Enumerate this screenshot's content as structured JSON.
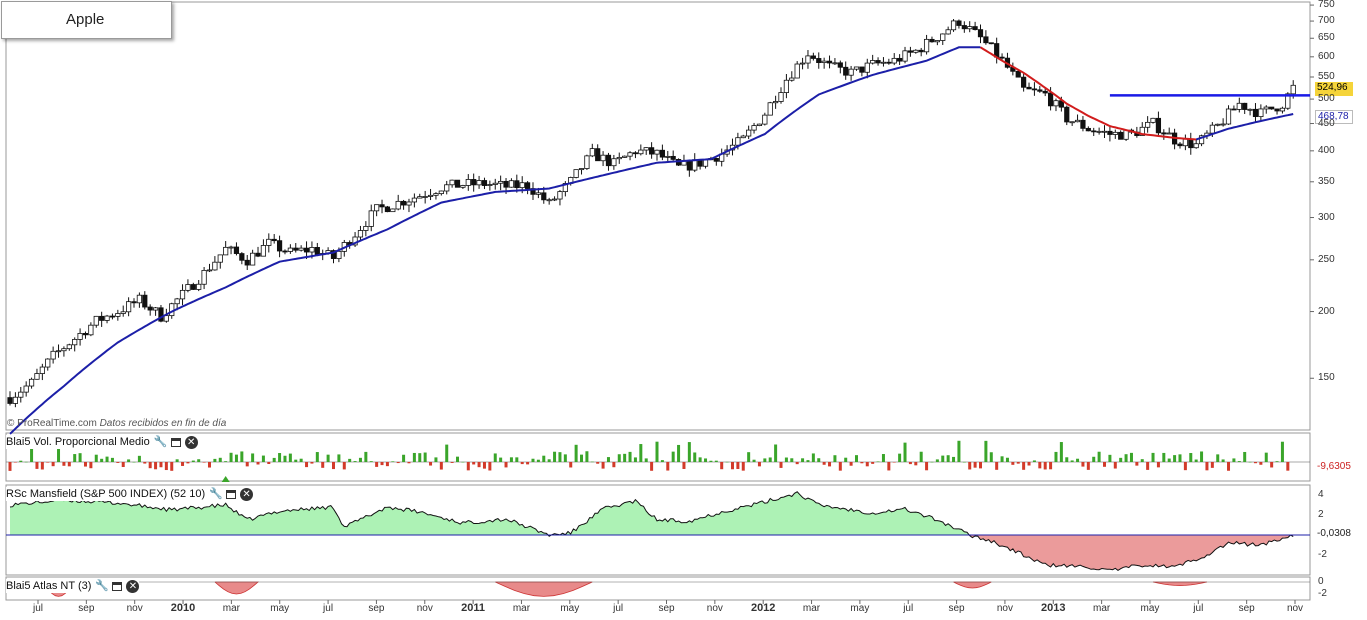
{
  "title": "Apple",
  "credit": {
    "brand": "© ProRealTime.com",
    "note": "Datos recibidos en fin de día"
  },
  "panels": {
    "volume": {
      "title": "Blai5 Vol. Proporcional Medio",
      "value": "-9,6305"
    },
    "rsc": {
      "title": "RSc Mansfield (S&P 500 INDEX) (52 10)",
      "value": "-0,0308",
      "ticks": [
        "4",
        "2",
        "-2"
      ]
    },
    "atlas": {
      "title": "Blai5 Atlas NT (3)",
      "ticks": [
        "0",
        "-2"
      ]
    }
  },
  "price_axis": {
    "ticks": [
      "750",
      "700",
      "650",
      "600",
      "550",
      "500",
      "450",
      "400",
      "350",
      "300",
      "250",
      "200",
      "150"
    ],
    "last_price": "524,96",
    "ma_value": "468,78"
  },
  "colors": {
    "bull_volume": "#3aa52a",
    "bear_volume": "#d23a2a",
    "ma_long": "#1c1fa8",
    "ma_short": "#d11c1c",
    "resistance": "#1a1ae6",
    "rsc_pos": "#9ff0a8",
    "rsc_neg": "#e88a8a",
    "last_price_tag": "#f5d43a"
  },
  "chart_data": {
    "type": "candlestick",
    "scale": "log",
    "ylim": [
      120,
      760
    ],
    "x_ticks": [
      "jul",
      "sep",
      "nov",
      "2010",
      "mar",
      "may",
      "jul",
      "sep",
      "nov",
      "2011",
      "mar",
      "may",
      "jul",
      "sep",
      "nov",
      "2012",
      "mar",
      "may",
      "jul",
      "sep",
      "nov",
      "2013",
      "mar",
      "may",
      "jul",
      "sep",
      "nov"
    ],
    "weekly_close_anchors": [
      [
        0,
        138
      ],
      [
        4,
        147
      ],
      [
        8,
        165
      ],
      [
        12,
        178
      ],
      [
        16,
        192
      ],
      [
        20,
        200
      ],
      [
        24,
        210
      ],
      [
        28,
        196
      ],
      [
        32,
        215
      ],
      [
        36,
        236
      ],
      [
        40,
        262
      ],
      [
        44,
        250
      ],
      [
        48,
        268
      ],
      [
        52,
        258
      ],
      [
        56,
        262
      ],
      [
        60,
        252
      ],
      [
        64,
        280
      ],
      [
        68,
        310
      ],
      [
        72,
        320
      ],
      [
        76,
        330
      ],
      [
        80,
        342
      ],
      [
        84,
        346
      ],
      [
        88,
        347
      ],
      [
        92,
        343
      ],
      [
        96,
        345
      ],
      [
        100,
        318
      ],
      [
        104,
        350
      ],
      [
        108,
        395
      ],
      [
        112,
        378
      ],
      [
        116,
        400
      ],
      [
        120,
        395
      ],
      [
        124,
        372
      ],
      [
        128,
        380
      ],
      [
        132,
        395
      ],
      [
        136,
        420
      ],
      [
        140,
        470
      ],
      [
        144,
        545
      ],
      [
        148,
        610
      ],
      [
        152,
        575
      ],
      [
        156,
        560
      ],
      [
        160,
        580
      ],
      [
        164,
        590
      ],
      [
        168,
        615
      ],
      [
        172,
        655
      ],
      [
        176,
        700
      ],
      [
        180,
        650
      ],
      [
        184,
        590
      ],
      [
        188,
        520
      ],
      [
        192,
        510
      ],
      [
        196,
        460
      ],
      [
        200,
        440
      ],
      [
        204,
        430
      ],
      [
        208,
        430
      ],
      [
        212,
        450
      ],
      [
        216,
        420
      ],
      [
        220,
        410
      ],
      [
        224,
        445
      ],
      [
        228,
        490
      ],
      [
        232,
        470
      ],
      [
        236,
        490
      ],
      [
        238,
        524.96
      ]
    ],
    "ma_long_anchors": [
      [
        0,
        118
      ],
      [
        10,
        145
      ],
      [
        20,
        175
      ],
      [
        30,
        200
      ],
      [
        40,
        222
      ],
      [
        50,
        248
      ],
      [
        60,
        258
      ],
      [
        70,
        285
      ],
      [
        80,
        320
      ],
      [
        90,
        335
      ],
      [
        100,
        340
      ],
      [
        110,
        360
      ],
      [
        120,
        380
      ],
      [
        130,
        386
      ],
      [
        140,
        430
      ],
      [
        150,
        510
      ],
      [
        160,
        555
      ],
      [
        170,
        590
      ],
      [
        176,
        625
      ],
      [
        180,
        625
      ]
    ],
    "ma_short_anchors": [
      [
        180,
        625
      ],
      [
        184,
        590
      ],
      [
        188,
        560
      ],
      [
        192,
        525
      ],
      [
        196,
        490
      ],
      [
        200,
        465
      ],
      [
        204,
        445
      ],
      [
        210,
        430
      ],
      [
        216,
        423
      ],
      [
        220,
        420
      ]
    ],
    "ma_long_tail_anchors": [
      [
        220,
        420
      ],
      [
        226,
        440
      ],
      [
        232,
        455
      ],
      [
        238,
        468.78
      ]
    ],
    "resistance_level": 508,
    "resistance_range_weeks": [
      204,
      240
    ],
    "volume_osc_range": [
      -25,
      25
    ],
    "volume_last": -9.6305,
    "rsc_anchors": [
      [
        0,
        3
      ],
      [
        10,
        3.5
      ],
      [
        20,
        3.2
      ],
      [
        30,
        2.5
      ],
      [
        40,
        3
      ],
      [
        44,
        1.5
      ],
      [
        50,
        2.4
      ],
      [
        60,
        2.8
      ],
      [
        62,
        0.8
      ],
      [
        70,
        2.8
      ],
      [
        76,
        2.3
      ],
      [
        84,
        1.2
      ],
      [
        92,
        1.6
      ],
      [
        100,
        0
      ],
      [
        104,
        0.2
      ],
      [
        110,
        2.6
      ],
      [
        116,
        3.4
      ],
      [
        120,
        1.5
      ],
      [
        126,
        1.4
      ],
      [
        132,
        2.3
      ],
      [
        140,
        3.3
      ],
      [
        146,
        4.2
      ],
      [
        150,
        3.0
      ],
      [
        160,
        2.2
      ],
      [
        166,
        2.6
      ],
      [
        172,
        1.5
      ],
      [
        178,
        0
      ],
      [
        182,
        -0.6
      ],
      [
        188,
        -2
      ],
      [
        192,
        -3
      ],
      [
        200,
        -3.2
      ],
      [
        204,
        -3.6
      ],
      [
        210,
        -3
      ],
      [
        216,
        -3.2
      ],
      [
        222,
        -2
      ],
      [
        226,
        -0.8
      ],
      [
        232,
        -1.0
      ],
      [
        238,
        -0.0308
      ]
    ],
    "rsc_ylim": [
      -4,
      5
    ],
    "atlas_dips": [
      [
        6,
        12,
        -2.4
      ],
      [
        38,
        46,
        -2
      ],
      [
        90,
        108,
        -2.4
      ],
      [
        175,
        182,
        -1
      ],
      [
        212,
        222,
        -0.6
      ]
    ],
    "atlas_ylim": [
      -3,
      0.5
    ]
  }
}
